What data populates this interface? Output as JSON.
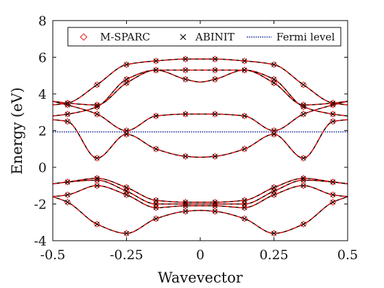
{
  "chart_data": {
    "type": "line",
    "title": "",
    "xlabel": "Wavevector",
    "ylabel": "Energy (eV)",
    "xlim": [
      -0.5,
      0.5
    ],
    "ylim": [
      -4,
      8
    ],
    "xticks": [
      "-0.5",
      "-0.25",
      "0",
      "0.25",
      "0.5"
    ],
    "xtick_values": [
      -0.5,
      -0.25,
      0,
      0.25,
      0.5
    ],
    "yticks": [
      "-4",
      "-2",
      "0",
      "2",
      "4",
      "6",
      "8"
    ],
    "ytick_values": [
      -4,
      -2,
      0,
      2,
      4,
      6,
      8
    ],
    "grid": false,
    "legend_position": "top-right",
    "legend": [
      "M-SPARC",
      "ABINIT",
      "Fermi level"
    ],
    "colors": {
      "msparc": "#e8140f",
      "abinit": "#000000",
      "fermi": "#0a1f8f"
    },
    "fermi_level": 1.93,
    "marker_x": [
      -0.45,
      -0.35,
      -0.25,
      -0.15,
      -0.05,
      0.05,
      0.15,
      0.25,
      0.35,
      0.45
    ],
    "bands": [
      {
        "x": [
          -0.5,
          -0.45,
          -0.35,
          -0.25,
          -0.15,
          -0.05,
          0,
          0.05,
          0.15,
          0.25,
          0.35,
          0.45,
          0.5
        ],
        "y": [
          -1.6,
          -1.9,
          -3.1,
          -3.6,
          -2.8,
          -2.4,
          -2.35,
          -2.4,
          -2.8,
          -3.6,
          -3.1,
          -1.9,
          -1.6
        ]
      },
      {
        "x": [
          -0.5,
          -0.45,
          -0.35,
          -0.25,
          -0.15,
          -0.05,
          0,
          0.05,
          0.15,
          0.25,
          0.35,
          0.45,
          0.5
        ],
        "y": [
          -1.6,
          -1.5,
          -1.0,
          -1.5,
          -2.2,
          -2.1,
          -2.1,
          -2.1,
          -2.2,
          -1.5,
          -1.0,
          -1.5,
          -1.6
        ]
      },
      {
        "x": [
          -0.5,
          -0.45,
          -0.35,
          -0.25,
          -0.15,
          -0.05,
          0,
          0.05,
          0.15,
          0.25,
          0.35,
          0.45,
          0.5
        ],
        "y": [
          -0.9,
          -0.8,
          -0.7,
          -1.3,
          -2.0,
          -2.0,
          -2.0,
          -2.0,
          -2.0,
          -1.3,
          -0.7,
          -0.8,
          -0.9
        ]
      },
      {
        "x": [
          -0.5,
          -0.45,
          -0.35,
          -0.25,
          -0.15,
          -0.05,
          0,
          0.05,
          0.15,
          0.25,
          0.35,
          0.45,
          0.5
        ],
        "y": [
          -0.9,
          -0.8,
          -0.6,
          -1.1,
          -1.8,
          -1.9,
          -1.9,
          -1.9,
          -1.8,
          -1.1,
          -0.6,
          -0.8,
          -0.9
        ]
      },
      {
        "x": [
          -0.5,
          -0.45,
          -0.35,
          -0.25,
          -0.15,
          -0.05,
          0,
          0.05,
          0.15,
          0.25,
          0.35,
          0.45,
          0.5
        ],
        "y": [
          3.6,
          3.4,
          2.9,
          2.0,
          2.8,
          2.9,
          2.9,
          2.9,
          2.8,
          2.0,
          2.9,
          3.4,
          3.6
        ]
      },
      {
        "x": [
          -0.5,
          -0.45,
          -0.35,
          -0.25,
          -0.15,
          -0.05,
          0,
          0.05,
          0.15,
          0.25,
          0.35,
          0.45,
          0.5
        ],
        "y": [
          2.6,
          2.5,
          0.5,
          1.8,
          1.0,
          0.6,
          0.55,
          0.6,
          1.0,
          1.8,
          0.5,
          2.5,
          2.6
        ]
      },
      {
        "x": [
          -0.5,
          -0.45,
          -0.35,
          -0.25,
          -0.15,
          -0.05,
          0,
          0.05,
          0.15,
          0.25,
          0.35,
          0.45,
          0.5
        ],
        "y": [
          3.6,
          3.5,
          3.4,
          4.6,
          5.3,
          4.8,
          4.65,
          4.8,
          5.3,
          4.6,
          3.4,
          3.5,
          3.6
        ]
      },
      {
        "x": [
          -0.5,
          -0.45,
          -0.35,
          -0.25,
          -0.15,
          -0.05,
          0,
          0.05,
          0.15,
          0.25,
          0.35,
          0.45,
          0.5
        ],
        "y": [
          3.4,
          3.5,
          4.5,
          5.6,
          5.8,
          5.9,
          5.9,
          5.9,
          5.8,
          5.6,
          4.5,
          3.5,
          3.4
        ]
      },
      {
        "x": [
          -0.5,
          -0.45,
          -0.35,
          -0.25,
          -0.15,
          -0.05,
          0,
          0.05,
          0.15,
          0.25,
          0.35,
          0.45,
          0.5
        ],
        "y": [
          2.8,
          2.9,
          3.3,
          4.8,
          5.3,
          5.3,
          5.3,
          5.3,
          5.3,
          4.8,
          3.3,
          2.9,
          2.8
        ]
      }
    ]
  }
}
